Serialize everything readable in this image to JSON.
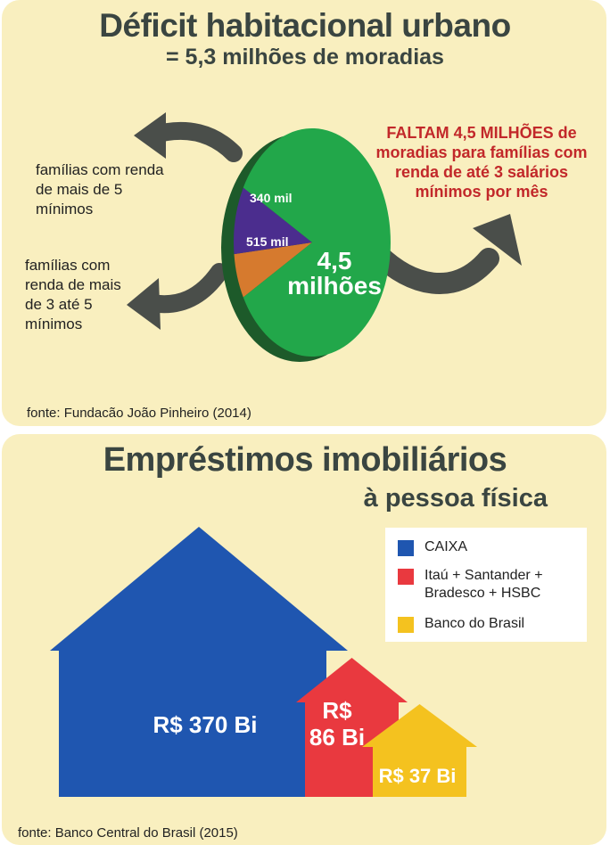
{
  "top": {
    "title": "Déficit habitacional urbano",
    "subtitle": "= 5,3 milhões de moradias",
    "callout": "FALTAM 4,5 MILHÕES de moradias para famílias com renda de até 3 salários mínimos por mês",
    "label_over5": "famílias com renda de mais de 5 mínimos",
    "label_3to5": "famílias com renda de mais de 3 até 5 mínimos",
    "source": "fonte: Fundacão João Pinheiro (2014)"
  },
  "bottom": {
    "title": "Empréstimos imobiliários",
    "subtitle": "à pessoa física",
    "source": "fonte: Banco Central do Brasil (2015)"
  },
  "colors": {
    "green": "#22a74a",
    "orange": "#d67a2e",
    "purple": "#4b2d8e",
    "blue": "#1f56b0",
    "red": "#e9393f",
    "yellow": "#f4c21f"
  },
  "chart_data": [
    {
      "type": "pie",
      "title": "Déficit habitacional urbano",
      "subtitle": "= 5,3 milhões de moradias",
      "slices": [
        {
          "label": "famílias com renda de até 3 salários mínimos por mês",
          "value": 4500000,
          "display": "4,5 milhões",
          "color": "#22a74a"
        },
        {
          "label": "famílias com renda de mais de 3 até 5 mínimos",
          "value": 515000,
          "display": "515 mil",
          "color": "#4b2d8e"
        },
        {
          "label": "famílias com renda de mais de 5 mínimos",
          "value": 340000,
          "display": "340 mil",
          "color": "#d67a2e"
        }
      ]
    },
    {
      "type": "bar",
      "title": "Empréstimos imobiliários",
      "subtitle": "à pessoa física",
      "categories": [
        "CAIXA",
        "Itaú + Santander + Bradesco + HSBC",
        "Banco do Brasil"
      ],
      "values": [
        370,
        86,
        37
      ],
      "displays": [
        "R$ 370 Bi",
        "R$ 86 Bi",
        "R$ 37 Bi"
      ],
      "colors": [
        "#1f56b0",
        "#e9393f",
        "#f4c21f"
      ],
      "unit": "R$ Bi",
      "legend": [
        {
          "label": "CAIXA",
          "color": "#1f56b0"
        },
        {
          "label": "Itaú + Santander + Bradesco + HSBC",
          "label_lines": [
            "Itaú + Santander +",
            "Bradesco + HSBC"
          ],
          "color": "#e9393f"
        },
        {
          "label": "Banco do Brasil",
          "color": "#f4c21f"
        }
      ],
      "legend_position": "top-right"
    }
  ]
}
